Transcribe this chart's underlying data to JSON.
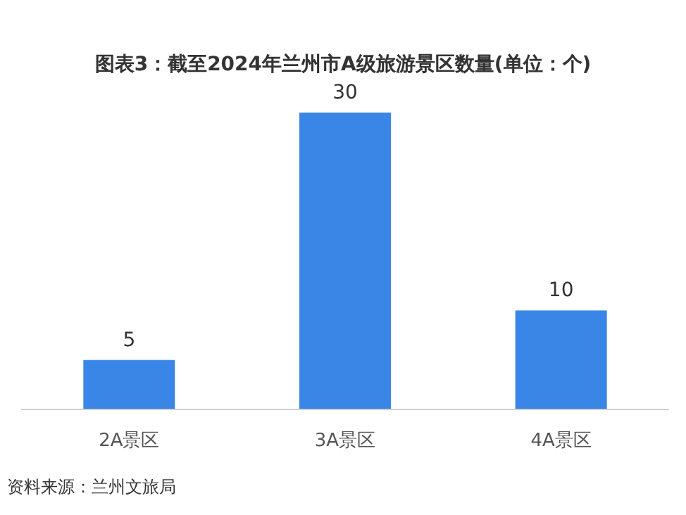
{
  "chart_data": {
    "type": "bar",
    "title": "图表3：截至2024年兰州市A级旅游景区数量(单位：个)",
    "categories": [
      "2A景区",
      "3A景区",
      "4A景区"
    ],
    "values": [
      5,
      30,
      10
    ],
    "color": "#3a86e6",
    "data_labels": true,
    "annotations": [
      "资料来源：兰州文旅局"
    ]
  }
}
